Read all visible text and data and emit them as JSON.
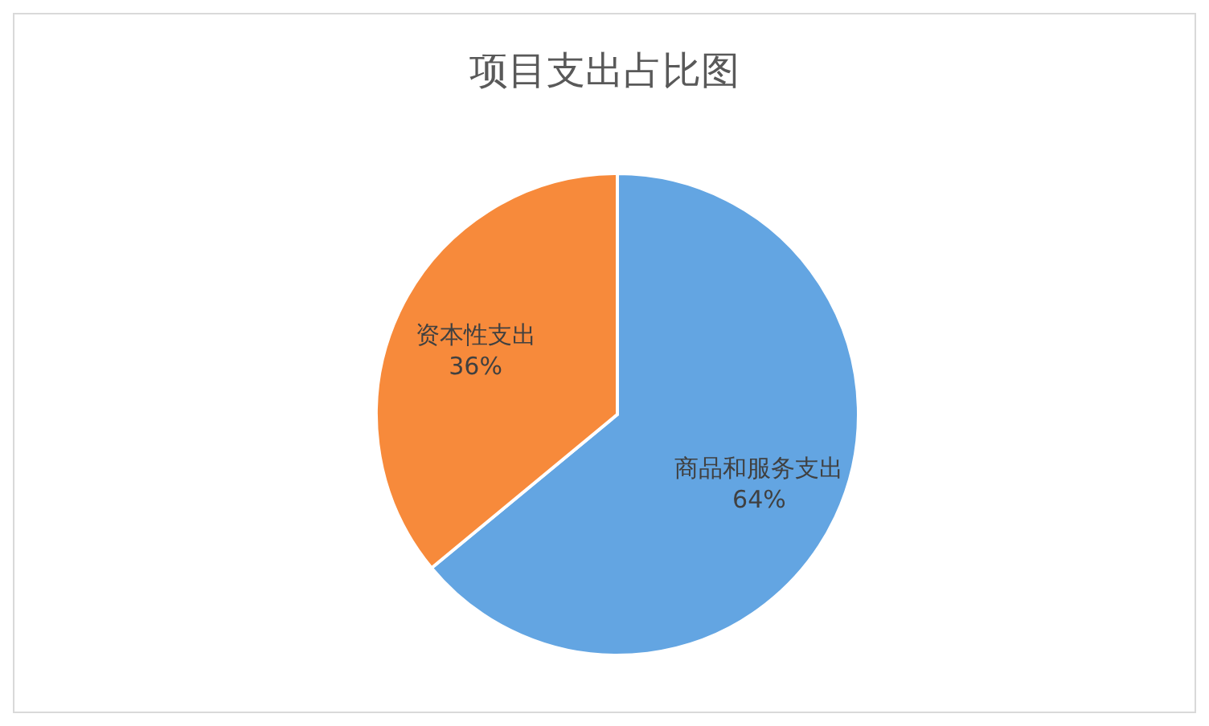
{
  "chart_data": {
    "type": "pie",
    "title": "项目支出占比图",
    "categories": [
      "商品和服务支出",
      "资本性支出"
    ],
    "values": [
      64,
      36
    ],
    "colors": [
      "#63a5e2",
      "#f78a3b"
    ],
    "value_labels": [
      "64%",
      "36%"
    ],
    "legend": false
  }
}
